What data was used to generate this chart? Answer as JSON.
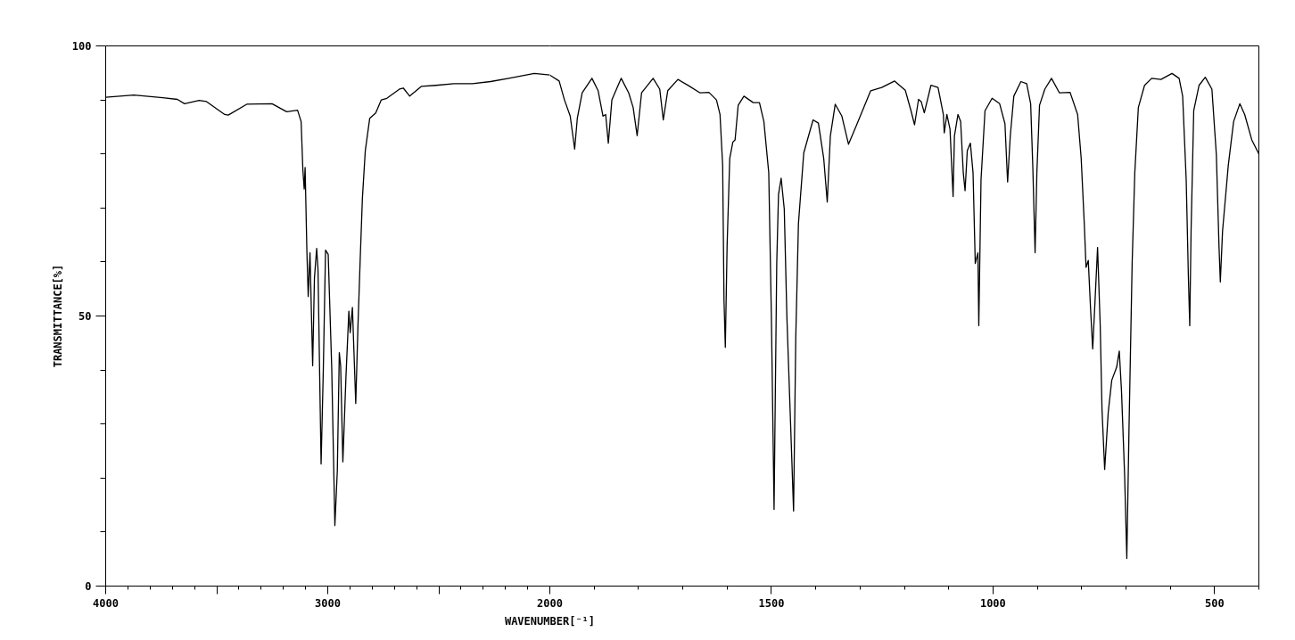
{
  "chart_data": [
    {
      "type": "line",
      "ylabel": "TRANSMITTANCE[%]",
      "color": "#000000",
      "grid": false,
      "xlim": [
        4000,
        2000
      ],
      "ylim": [
        0,
        100
      ],
      "xticks": [
        4000,
        {
          "value": 3500,
          "label": null
        },
        3000,
        {
          "value": 2500,
          "label": null
        },
        2000
      ],
      "yticks": [
        0,
        50,
        100
      ],
      "x": [
        4000,
        3873,
        3743,
        3677,
        3645,
        3579,
        3546,
        3464,
        3448,
        3365,
        3251,
        3185,
        3136,
        3120,
        3112,
        3106,
        3102,
        3094,
        3088,
        3080,
        3068,
        3060,
        3050,
        3044,
        3030,
        3020,
        3010,
        2998,
        2982,
        2968,
        2957,
        2948,
        2942,
        2932,
        2918,
        2905,
        2899,
        2889,
        2874,
        2864,
        2854,
        2844,
        2831,
        2811,
        2784,
        2759,
        2734,
        2677,
        2660,
        2631,
        2579,
        2513,
        2432,
        2349,
        2267,
        2185,
        2070,
        2000
      ],
      "values": [
        90.5,
        90.9,
        90.4,
        90.1,
        89.3,
        89.9,
        89.7,
        87.3,
        87.2,
        89.2,
        89.3,
        87.8,
        88.1,
        86.0,
        77.0,
        73.5,
        77.5,
        62.0,
        53.6,
        61.7,
        40.8,
        57.0,
        62.5,
        58.7,
        22.6,
        40.1,
        62.2,
        61.4,
        40.1,
        11.2,
        21.3,
        43.2,
        40.8,
        23.0,
        38.8,
        50.9,
        46.9,
        51.6,
        33.8,
        48.2,
        60.4,
        71.8,
        80.6,
        86.6,
        87.6,
        90.0,
        90.3,
        92.0,
        92.2,
        90.7,
        92.5,
        92.7,
        93.0,
        93.0,
        93.4,
        94.0,
        94.9,
        94.6
      ]
    },
    {
      "type": "line",
      "xlabel": "WAVENUMBER[⁻¹]",
      "color": "#000000",
      "grid": false,
      "tick_labels": "x",
      "xlim": [
        2000,
        400
      ],
      "ylim": [
        0,
        100
      ],
      "xticks": [
        1500,
        1000,
        500
      ],
      "x": [
        2000,
        1996,
        1979,
        1967,
        1954,
        1944,
        1938,
        1927,
        1905,
        1891,
        1880,
        1874,
        1868,
        1860,
        1839,
        1822,
        1812,
        1803,
        1793,
        1767,
        1752,
        1744,
        1734,
        1711,
        1686,
        1661,
        1641,
        1624,
        1616,
        1610,
        1607,
        1604,
        1600,
        1594,
        1587,
        1582,
        1575,
        1562,
        1541,
        1527,
        1517,
        1506,
        1500,
        1494,
        1488,
        1484,
        1478,
        1471,
        1465,
        1457,
        1450,
        1445,
        1439,
        1427,
        1406,
        1394,
        1382,
        1374,
        1367,
        1356,
        1341,
        1326,
        1308,
        1276,
        1251,
        1222,
        1198,
        1185,
        1177,
        1168,
        1162,
        1155,
        1140,
        1124,
        1112,
        1110,
        1104,
        1097,
        1090,
        1087,
        1079,
        1073,
        1067,
        1063,
        1058,
        1051,
        1045,
        1040,
        1034,
        1032,
        1027,
        1018,
        1002,
        985,
        973,
        967,
        961,
        953,
        937,
        924,
        915,
        910,
        905,
        901,
        895,
        883,
        868,
        850,
        826,
        809,
        801,
        794,
        790,
        785,
        780,
        775,
        770,
        764,
        758,
        754,
        748,
        740,
        732,
        721,
        715,
        710,
        703,
        698,
        693,
        686,
        680,
        672,
        658,
        642,
        621,
        596,
        580,
        572,
        564,
        559,
        556,
        553,
        547,
        535,
        521,
        506,
        496,
        490,
        487,
        482,
        469,
        457,
        443,
        432,
        416,
        400
      ],
      "values": [
        94.6,
        94.4,
        93.5,
        90.0,
        87.0,
        80.9,
        86.6,
        91.3,
        94.0,
        91.7,
        87.0,
        87.3,
        82.0,
        90.0,
        94.0,
        91.3,
        88.6,
        83.4,
        91.3,
        94.0,
        92.0,
        86.3,
        91.7,
        93.8,
        92.6,
        91.3,
        91.4,
        90.0,
        87.3,
        77.9,
        53.0,
        44.2,
        63.0,
        79.2,
        82.2,
        82.6,
        89.0,
        90.7,
        89.5,
        89.5,
        86.0,
        76.5,
        49.6,
        14.2,
        59.7,
        72.5,
        75.5,
        69.8,
        49.6,
        30.7,
        13.9,
        46.2,
        67.1,
        80.2,
        86.3,
        85.7,
        79.2,
        71.1,
        83.3,
        89.2,
        87.0,
        81.8,
        85.3,
        91.7,
        92.3,
        93.5,
        91.8,
        88.0,
        85.4,
        90.1,
        89.7,
        87.6,
        92.7,
        92.3,
        87.3,
        83.9,
        87.3,
        84.6,
        72.1,
        83.3,
        87.3,
        86.0,
        76.5,
        73.2,
        80.6,
        82.0,
        76.5,
        59.7,
        61.7,
        48.2,
        75.2,
        88.0,
        90.3,
        89.3,
        85.6,
        74.8,
        83.3,
        90.7,
        93.4,
        93.0,
        89.3,
        77.2,
        61.7,
        76.5,
        89.0,
        92.0,
        94.0,
        91.3,
        91.4,
        87.3,
        79.2,
        67.1,
        59.0,
        60.3,
        51.6,
        43.9,
        52.3,
        62.7,
        48.2,
        32.7,
        21.6,
        32.1,
        38.1,
        40.5,
        43.5,
        36.1,
        20.6,
        5.1,
        29.4,
        59.7,
        76.5,
        88.6,
        92.7,
        94.0,
        93.8,
        94.9,
        94.0,
        90.7,
        75.2,
        57.0,
        48.2,
        65.7,
        88.0,
        92.7,
        94.2,
        92.0,
        79.9,
        63.0,
        56.3,
        65.7,
        77.9,
        86.0,
        89.3,
        87.3,
        82.6,
        80.0
      ]
    }
  ]
}
